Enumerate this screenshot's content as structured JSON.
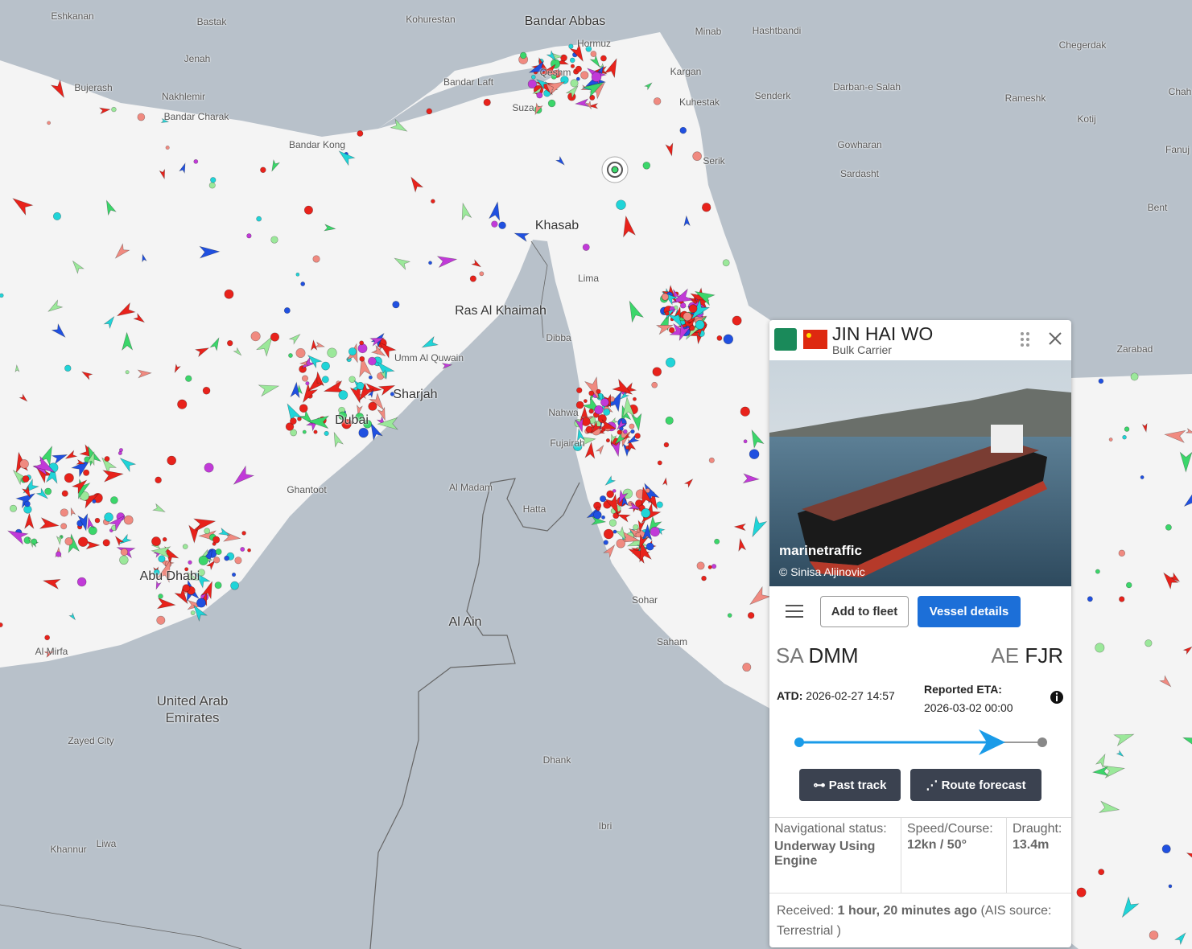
{
  "map": {
    "places": [
      "Eshkanan",
      "Bastak",
      "Kohurestan",
      "Bandar Abbas",
      "Hormuz",
      "Minab",
      "Hashtbandi",
      "Chegerdak",
      "Jenah",
      "Bandar Laft",
      "Qeshm",
      "Kargan",
      "Darban-e Salah",
      "Bujerash",
      "Nakhlemir",
      "Kuhestak",
      "Senderk",
      "Rameshk",
      "Suza",
      "Bandar Charak",
      "Kotij",
      "Bandar Kong",
      "Gowharan",
      "Serik",
      "Sardasht",
      "Bent",
      "Khasab",
      "Lima",
      "Ras Al Khaimah",
      "Dibba",
      "Umm Al Quwain",
      "Zarabad",
      "Sharjah",
      "Nahwa",
      "Dubai",
      "Fujairah",
      "Al Madam",
      "Ghantoot",
      "Hatta",
      "Abu Dhabi",
      "Sohar",
      "Al Ain",
      "Saham",
      "Al Mirfa",
      "United Arab Emirates",
      "Zayed City",
      "Dhank",
      "Ibri",
      "Khannur",
      "Liwa",
      "Fanuj",
      "Chah"
    ]
  },
  "vessel_panel": {
    "name": "JIN HAI WO",
    "type": "Bulk Carrier",
    "photo_watermark": "marinetraffic",
    "photo_credit": "© Sinisa Aljinovic",
    "add_to_fleet": "Add to fleet",
    "vessel_details": "Vessel details",
    "departure": {
      "country": "SA",
      "port": "DMM"
    },
    "arrival": {
      "country": "AE",
      "port": "FJR"
    },
    "atd": {
      "label": "ATD:",
      "value": "2026-02-27 14:57"
    },
    "eta": {
      "label": "Reported ETA:",
      "value": "2026-03-02 00:00"
    },
    "past_track": "Past track",
    "route_forecast": "Route forecast",
    "nav_status": {
      "label": "Navigational status:",
      "value": "Underway Using Engine"
    },
    "speed_course": {
      "label": "Speed/Course:",
      "value": "12kn / 50°"
    },
    "draught": {
      "label": "Draught:",
      "value": "13.4m"
    },
    "received": {
      "label": "Received:",
      "value": "1 hour, 20 minutes ago",
      "source": "(AIS source: Terrestrial )"
    }
  }
}
